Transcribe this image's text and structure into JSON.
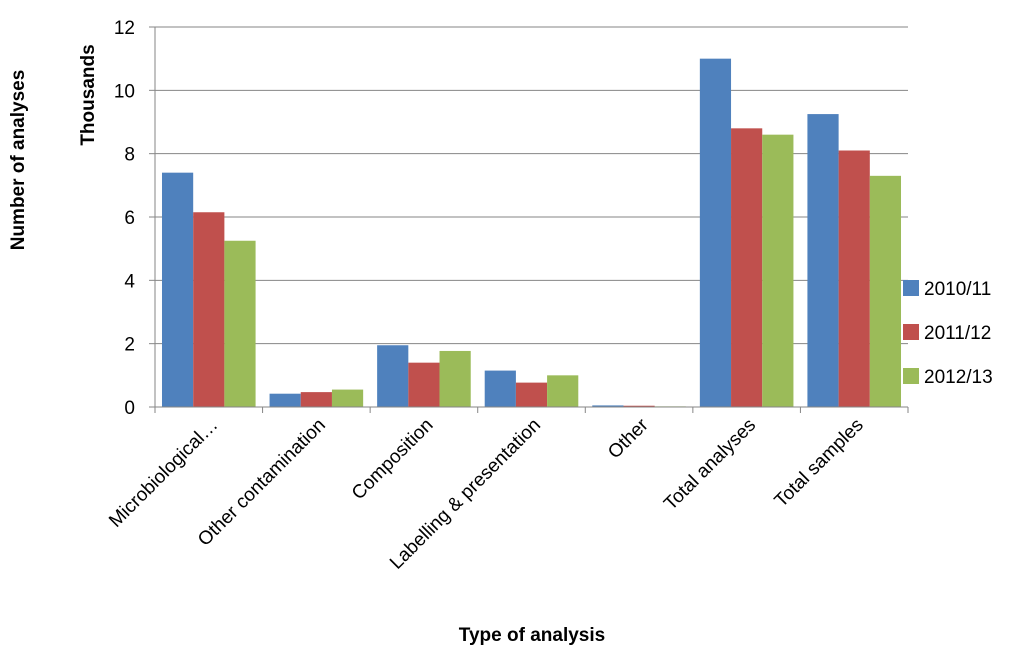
{
  "chart_data": {
    "type": "bar",
    "title": "",
    "xlabel": "Type of analysis",
    "ylabel": "Number of analyses",
    "y_unit_label": "Thousands",
    "ylim": [
      0,
      12
    ],
    "yticks": [
      0,
      2,
      4,
      6,
      8,
      10,
      12
    ],
    "grid": true,
    "legend_position": "right",
    "categories": [
      "Microbiological…",
      "Other contamination",
      "Composition",
      "Labelling & presentation",
      "Other",
      "Total analyses",
      "Total samples"
    ],
    "series": [
      {
        "name": "2010/11",
        "color": "#4F81BD",
        "values": [
          7.4,
          0.42,
          1.95,
          1.15,
          0.05,
          11.0,
          9.25
        ]
      },
      {
        "name": "2011/12",
        "color": "#C0504D",
        "values": [
          6.15,
          0.47,
          1.4,
          0.77,
          0.04,
          8.8,
          8.1
        ]
      },
      {
        "name": "2012/13",
        "color": "#9BBB59",
        "values": [
          5.25,
          0.55,
          1.77,
          1.0,
          0.02,
          8.6,
          7.3
        ]
      }
    ]
  }
}
